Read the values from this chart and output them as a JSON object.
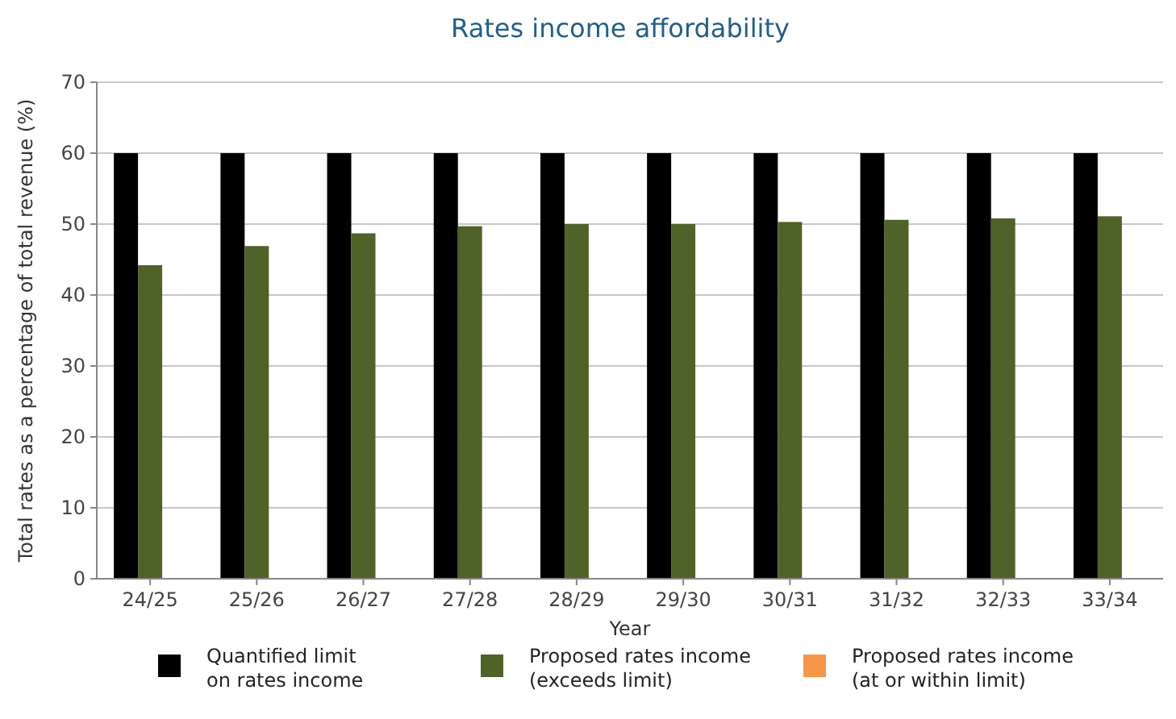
{
  "chart_data": {
    "type": "bar",
    "title": "Rates income affordability",
    "xlabel": "Year",
    "ylabel": "Total rates as a percentage of total revenue (%)",
    "categories": [
      "24/25",
      "25/26",
      "26/27",
      "27/28",
      "28/29",
      "29/30",
      "30/31",
      "31/32",
      "32/33",
      "33/34"
    ],
    "series": [
      {
        "name": "Quantified limit\non rates income",
        "color": "#000000",
        "values": [
          60,
          60,
          60,
          60,
          60,
          60,
          60,
          60,
          60,
          60
        ]
      },
      {
        "name": "Proposed rates income\n(exceeds limit)",
        "color": "#4f6228",
        "values": [
          44.2,
          46.9,
          48.7,
          49.7,
          50.0,
          50.0,
          50.3,
          50.6,
          50.8,
          51.1
        ]
      },
      {
        "name": "Proposed rates income\n(at or within limit)",
        "color": "#f79646",
        "values": [
          null,
          null,
          null,
          null,
          null,
          null,
          null,
          null,
          null,
          null
        ]
      }
    ],
    "ylim": [
      0,
      70
    ],
    "yticks": [
      0,
      10,
      20,
      30,
      40,
      50,
      60,
      70
    ],
    "grid": "y",
    "legend": "bottom"
  }
}
